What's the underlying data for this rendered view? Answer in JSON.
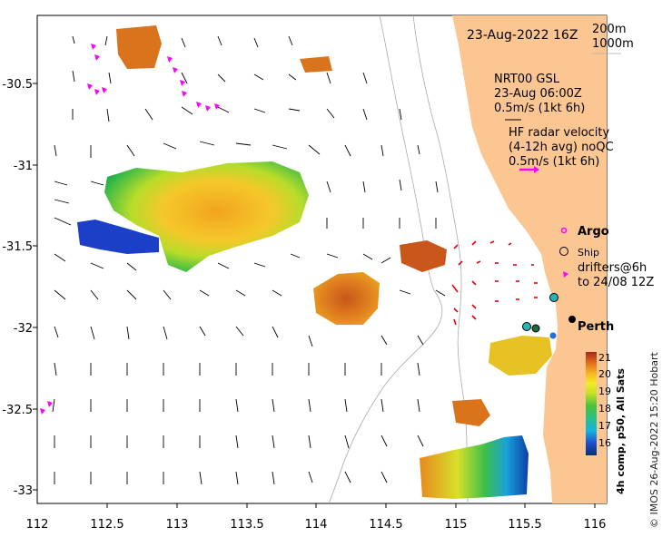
{
  "map": {
    "date_label": "23-Aug-2022 16Z",
    "isobath_labels": [
      "200m",
      "1000m"
    ],
    "x_ticks": [
      "112",
      "112.5",
      "113",
      "113.5",
      "114",
      "114.5",
      "115",
      "115.5",
      "116"
    ],
    "y_ticks": [
      "-30.5",
      "-31",
      "-31.5",
      "-32",
      "-32.5",
      "-33"
    ],
    "model_legend": {
      "line1": "NRT00 GSL",
      "line2": "23-Aug 06:00Z",
      "line3": "0.5m/s (1kt 6h)"
    },
    "radar_legend": {
      "line1": "HF radar velocity",
      "line2": "(4-12h avg) noQC",
      "line3": "0.5m/s (1kt 6h)"
    },
    "symbol_legend": {
      "argo": "Argo",
      "ship": "Ship",
      "drifters_line1": "drifters@6h",
      "drifters_line2": "to 24/08 12Z"
    },
    "city_label": "Perth",
    "colorbar": {
      "ticks": [
        "21",
        "20",
        "19",
        "18",
        "17",
        "16"
      ],
      "label": "4h comp, p50, All Sats"
    },
    "credit": "© IMOS 26-Aug-2022 15:20 Hobart",
    "colors": {
      "land": "#FCC693",
      "model_arrow": "#000000",
      "radar_arrow": "#E8000B",
      "argo": "#FF00FF",
      "drifter": "#FF00FF",
      "mooring": "#2AB5B5"
    }
  }
}
